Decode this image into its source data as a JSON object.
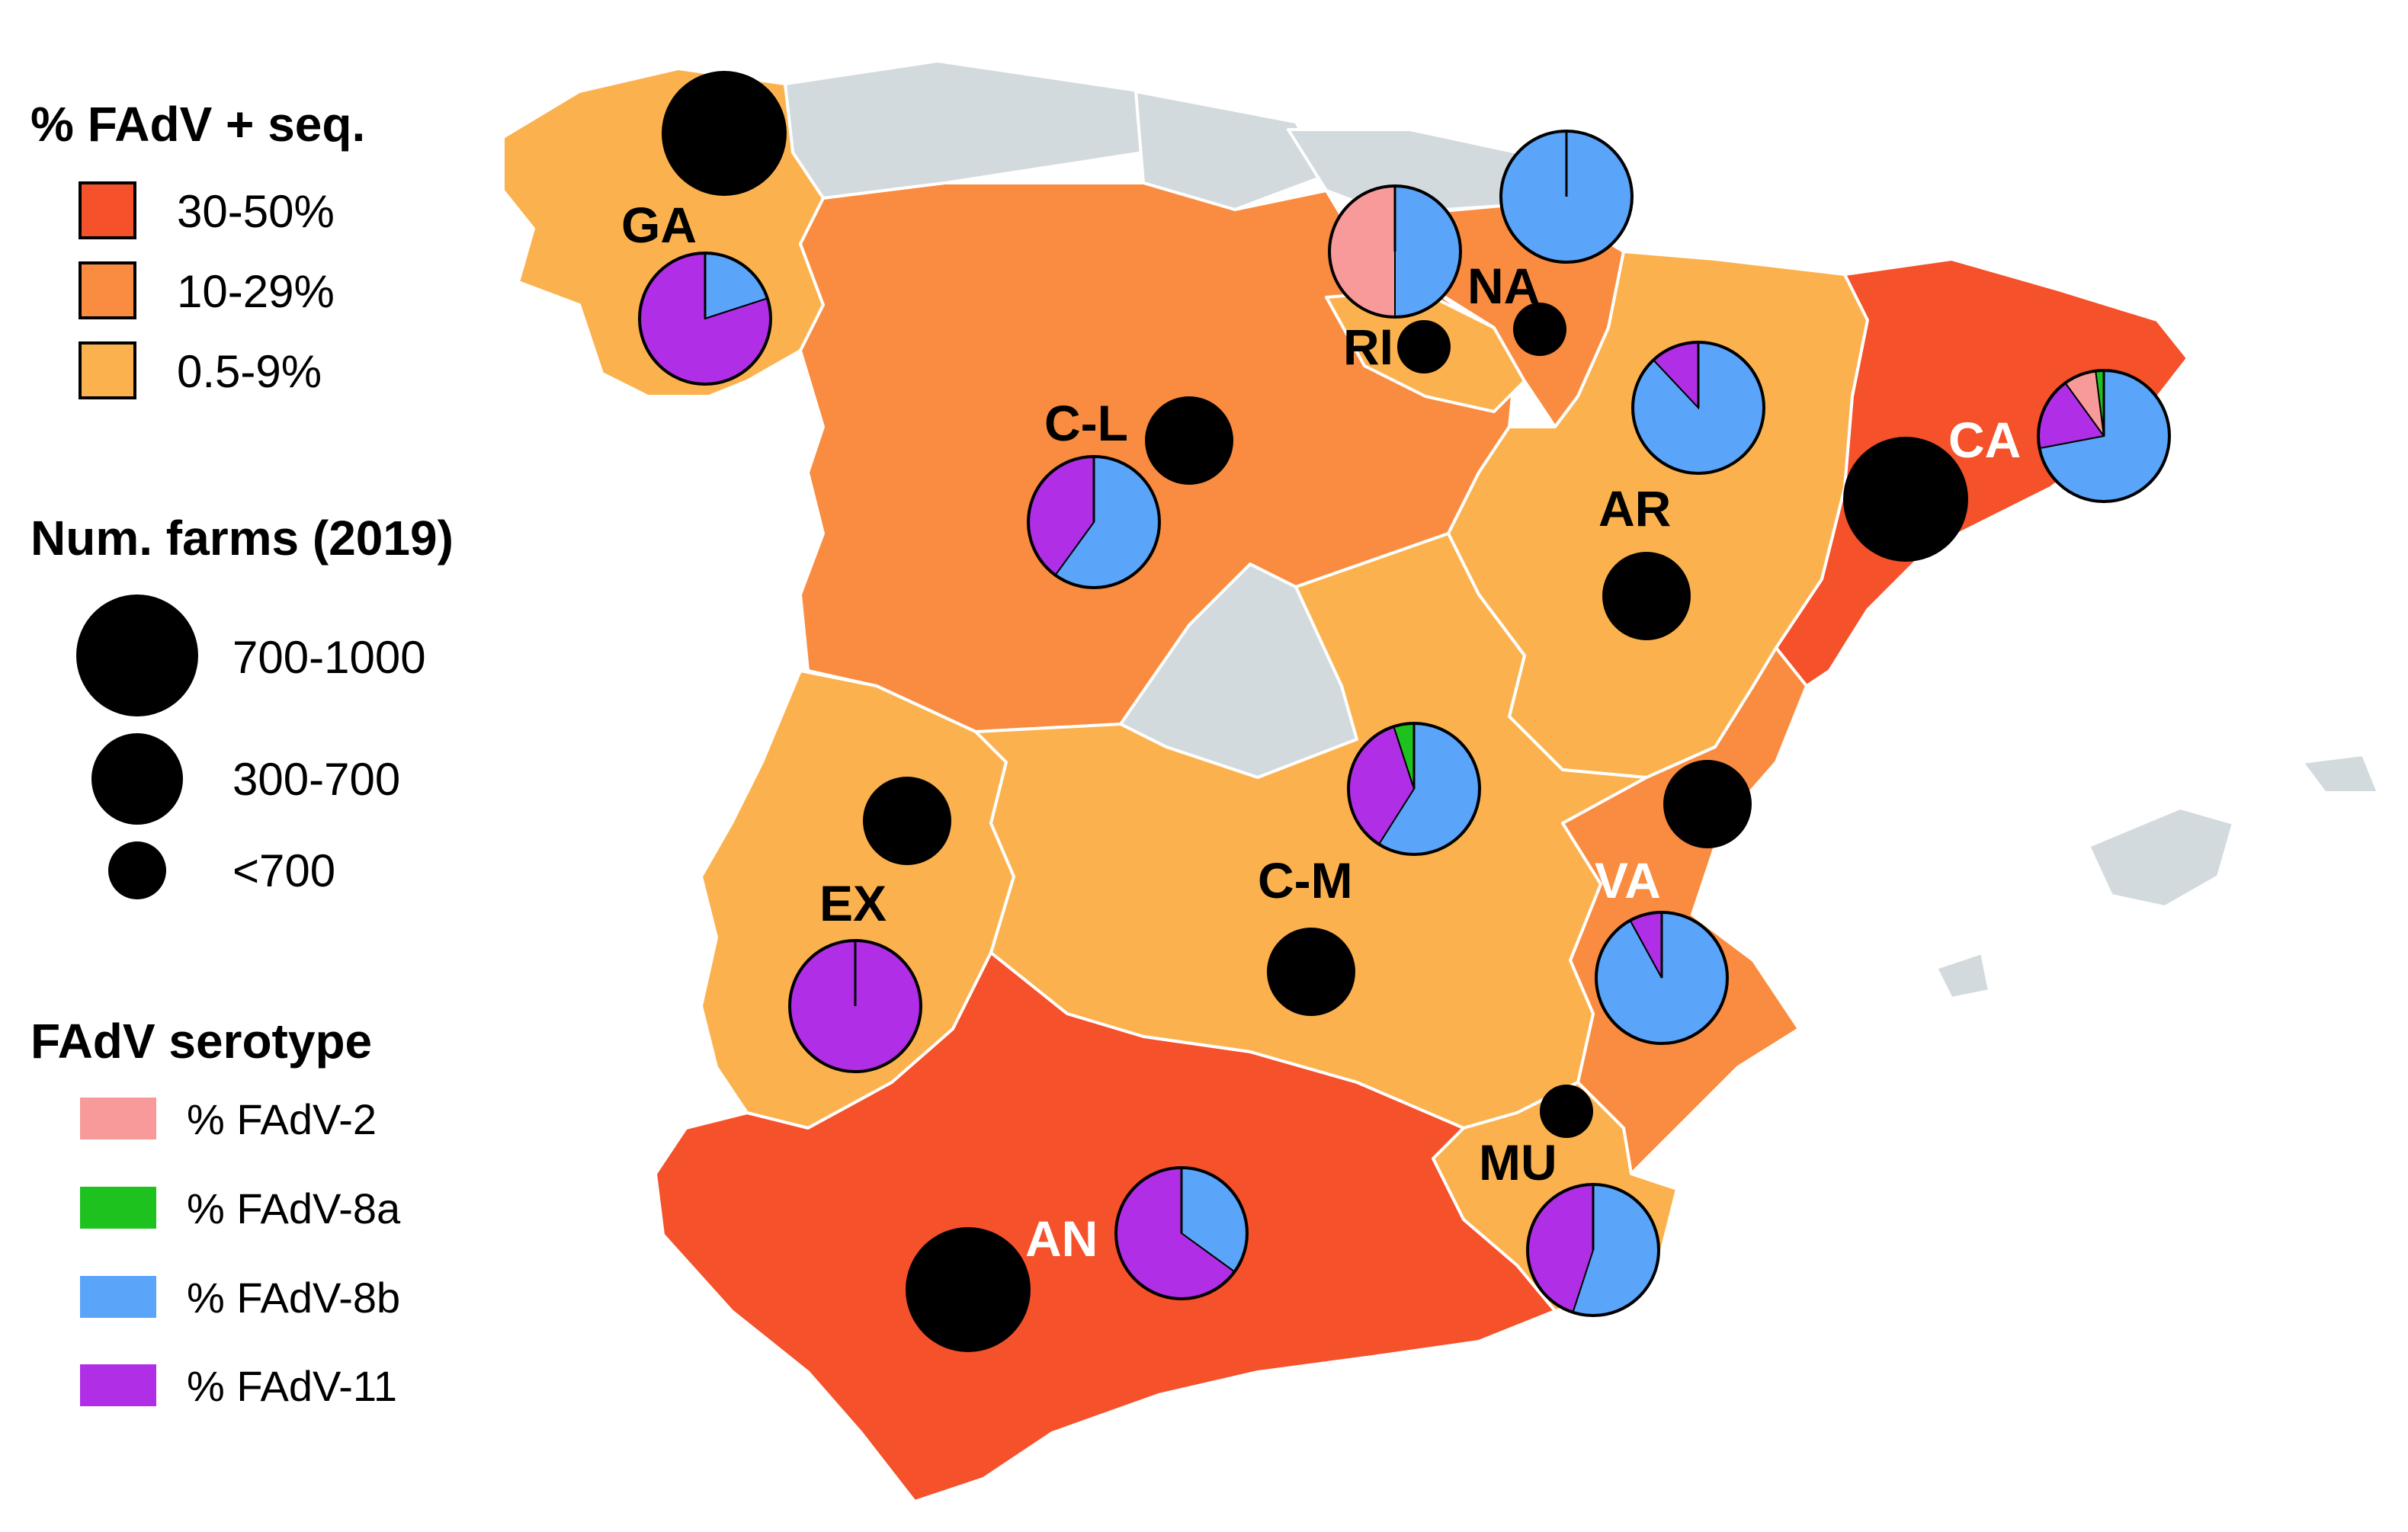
{
  "legend": {
    "prevalence": {
      "title": "% FAdV + seq.",
      "items": [
        {
          "label": "30-50%",
          "color": "#f5512a"
        },
        {
          "label": "10-29%",
          "color": "#f98c40"
        },
        {
          "label": "0.5-9%",
          "color": "#fbb24e"
        }
      ]
    },
    "farms": {
      "title": "Num. farms (2019)",
      "items": [
        {
          "label": "700-1000"
        },
        {
          "label": "300-700"
        },
        {
          "label": "<700"
        }
      ]
    },
    "serotype": {
      "title": "FAdV serotype",
      "items": [
        {
          "key": "fadv2",
          "label": "% FAdV-2",
          "color": "#f99a9a"
        },
        {
          "key": "fadv8a",
          "label": "% FAdV-8a",
          "color": "#1ec21e"
        },
        {
          "key": "fadv8b",
          "label": "% FAdV-8b",
          "color": "#5aa4fa"
        },
        {
          "key": "fadv11",
          "label": "% FAdV-11",
          "color": "#b02ee6"
        }
      ]
    }
  },
  "colors": {
    "no_data": "#d3dadd",
    "label_dark": "#000000",
    "label_light": "#ffffff"
  },
  "regions": [
    {
      "id": "GA",
      "label": "GA",
      "prevalence": "0.5-9%",
      "farms": "700-1000",
      "serotypes": {
        "fadv2": 0,
        "fadv8a": 0,
        "fadv8b": 20,
        "fadv11": 80
      }
    },
    {
      "id": "CL",
      "label": "C-L",
      "prevalence": "10-29%",
      "farms": "300-700",
      "serotypes": {
        "fadv2": 0,
        "fadv8a": 0,
        "fadv8b": 60,
        "fadv11": 40
      }
    },
    {
      "id": "RI",
      "label": "RI",
      "prevalence": "0.5-9%",
      "farms": "<700",
      "serotypes": {
        "fadv2": 50,
        "fadv8a": 0,
        "fadv8b": 50,
        "fadv11": 0
      }
    },
    {
      "id": "NA",
      "label": "NA",
      "prevalence": "10-29%",
      "farms": "<700",
      "serotypes": {
        "fadv2": 0,
        "fadv8a": 0,
        "fadv8b": 100,
        "fadv11": 0
      }
    },
    {
      "id": "AR",
      "label": "AR",
      "prevalence": "0.5-9%",
      "farms": "300-700",
      "serotypes": {
        "fadv2": 0,
        "fadv8a": 0,
        "fadv8b": 88,
        "fadv11": 12
      }
    },
    {
      "id": "CA",
      "label": "CA",
      "prevalence": "30-50%",
      "farms": "700-1000",
      "serotypes": {
        "fadv2": 8,
        "fadv8a": 2,
        "fadv8b": 72,
        "fadv11": 18
      }
    },
    {
      "id": "EX",
      "label": "EX",
      "prevalence": "0.5-9%",
      "farms": "300-700",
      "serotypes": {
        "fadv2": 0,
        "fadv8a": 0,
        "fadv8b": 0,
        "fadv11": 100
      }
    },
    {
      "id": "CM",
      "label": "C-M",
      "prevalence": "0.5-9%",
      "farms": "300-700",
      "serotypes": {
        "fadv2": 0,
        "fadv8a": 5,
        "fadv8b": 59,
        "fadv11": 36
      }
    },
    {
      "id": "VA",
      "label": "VA",
      "prevalence": "10-29%",
      "farms": "300-700",
      "serotypes": {
        "fadv2": 0,
        "fadv8a": 0,
        "fadv8b": 92,
        "fadv11": 8
      }
    },
    {
      "id": "MU",
      "label": "MU",
      "prevalence": "0.5-9%",
      "farms": "<700",
      "serotypes": {
        "fadv2": 0,
        "fadv8a": 0,
        "fadv8b": 55,
        "fadv11": 45
      }
    },
    {
      "id": "AN",
      "label": "AN",
      "prevalence": "30-50%",
      "farms": "700-1000",
      "serotypes": {
        "fadv2": 0,
        "fadv8a": 0,
        "fadv8b": 35,
        "fadv11": 65
      }
    }
  ]
}
